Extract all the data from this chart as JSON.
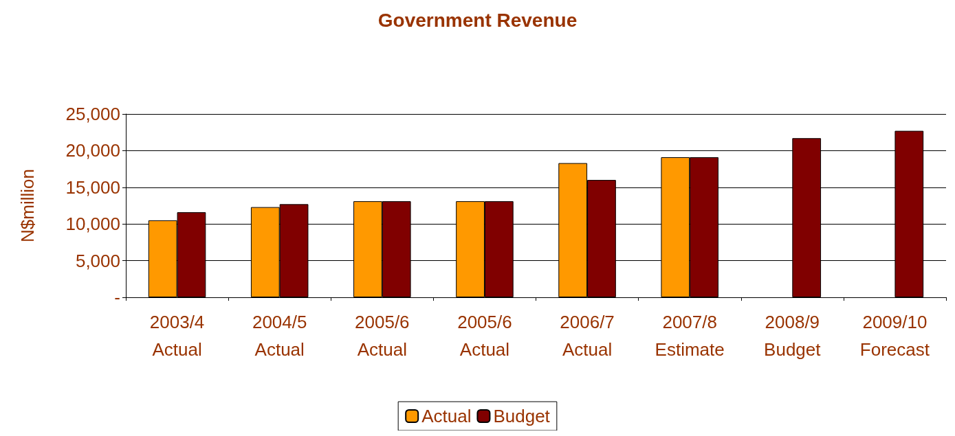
{
  "chart_data": {
    "type": "bar",
    "title": "Government Revenue",
    "ylabel": "N$million",
    "categories": [
      "2003/4\nActual",
      "2004/5\nActual",
      "2005/6\nActual",
      "2005/6\nActual",
      "2006/7\nActual",
      "2007/8\nEstimate",
      "2008/9\nBudget",
      "2009/10\nForecast"
    ],
    "series": [
      {
        "name": "Actual",
        "color": "#ff9900",
        "values": [
          10500,
          12300,
          13100,
          13100,
          18300,
          19100,
          null,
          null
        ]
      },
      {
        "name": "Budget",
        "color": "#800000",
        "values": [
          11600,
          12700,
          13100,
          13100,
          16000,
          19100,
          21700,
          22700
        ]
      }
    ],
    "ylim": [
      0,
      25000
    ],
    "yticks": [
      {
        "value": 0,
        "label": "-"
      },
      {
        "value": 5000,
        "label": "5,000"
      },
      {
        "value": 10000,
        "label": "10,000"
      },
      {
        "value": 15000,
        "label": "15,000"
      },
      {
        "value": 20000,
        "label": "20,000"
      },
      {
        "value": 25000,
        "label": "25,000"
      }
    ],
    "grid": "y",
    "legend": "bottom"
  }
}
